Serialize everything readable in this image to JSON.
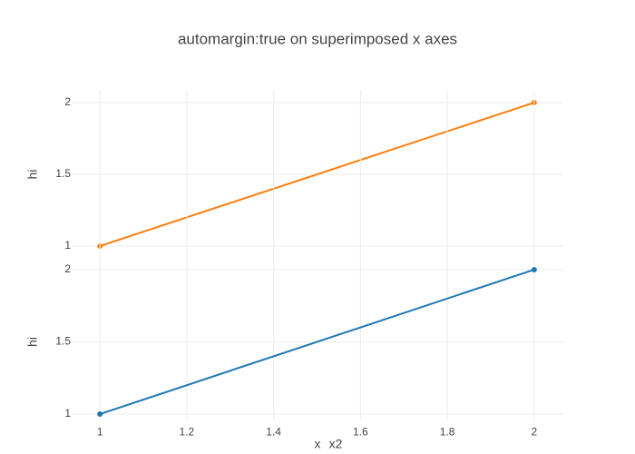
{
  "chart_data": [
    {
      "type": "line",
      "title": "automargin:true on superimposed x axes",
      "x": [
        1,
        2
      ],
      "values": [
        1,
        2
      ],
      "color": "#ff7f0e",
      "xlim": [
        0.937,
        2.065
      ],
      "xticks": [
        1,
        1.2,
        1.4,
        1.6,
        1.8,
        2
      ],
      "ylim": [
        0.96,
        2.04
      ],
      "yticks": [
        1,
        1.5,
        2
      ],
      "xlabel": "x2",
      "ylabel": "hi",
      "grid": true
    },
    {
      "type": "line",
      "x": [
        1,
        2
      ],
      "values": [
        1,
        2
      ],
      "color": "#1f77b4",
      "xlim": [
        0.937,
        2.065
      ],
      "xticks": [
        1,
        1.2,
        1.4,
        1.6,
        1.8,
        2
      ],
      "ylim": [
        0.96,
        2.04
      ],
      "yticks": [
        1,
        1.5,
        2
      ],
      "xlabel": "x",
      "ylabel": "hi",
      "grid": true
    }
  ]
}
